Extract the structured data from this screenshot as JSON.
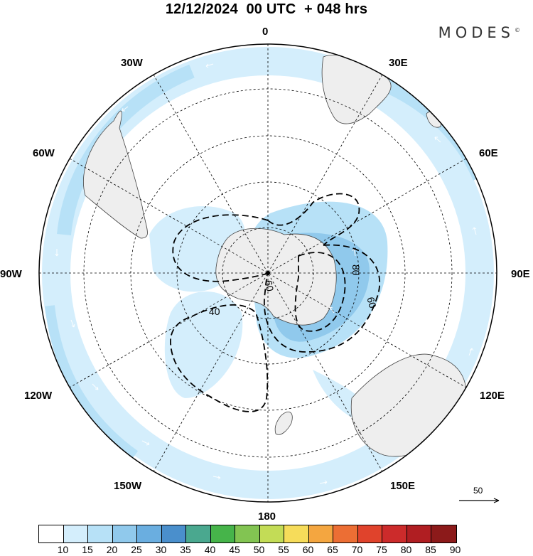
{
  "header": {
    "title": "12/12/2024  00 UTC  + 048 hrs",
    "brand": "MODES",
    "brand_mark": "©"
  },
  "map": {
    "projection": "south-polar-stereographic",
    "longitude_labels": {
      "top": "0",
      "l30w": "30W",
      "r30e": "30E",
      "l60w": "60W",
      "r60e": "60E",
      "l90w": "90W",
      "r90e": "90E",
      "l120w": "120W",
      "r120e": "120E",
      "l150w": "150W",
      "r150e": "150E",
      "bottom": "180"
    },
    "contour_labels": [
      "40",
      "60",
      "80",
      "60"
    ],
    "reference_vector_label": "50"
  },
  "colorbar": {
    "ticks": [
      "10",
      "15",
      "20",
      "25",
      "30",
      "35",
      "40",
      "45",
      "50",
      "55",
      "60",
      "65",
      "70",
      "75",
      "80",
      "85",
      "90"
    ],
    "colors": [
      "#ffffff",
      "#d4eefc",
      "#b7e1f7",
      "#90c9ec",
      "#6aaee0",
      "#4a8fcc",
      "#4aa88f",
      "#46b44a",
      "#82c452",
      "#c3dc56",
      "#f6dc5a",
      "#f4a640",
      "#ec6e34",
      "#e0432c",
      "#cc2b2b",
      "#b01e22",
      "#8c1a1a"
    ]
  }
}
